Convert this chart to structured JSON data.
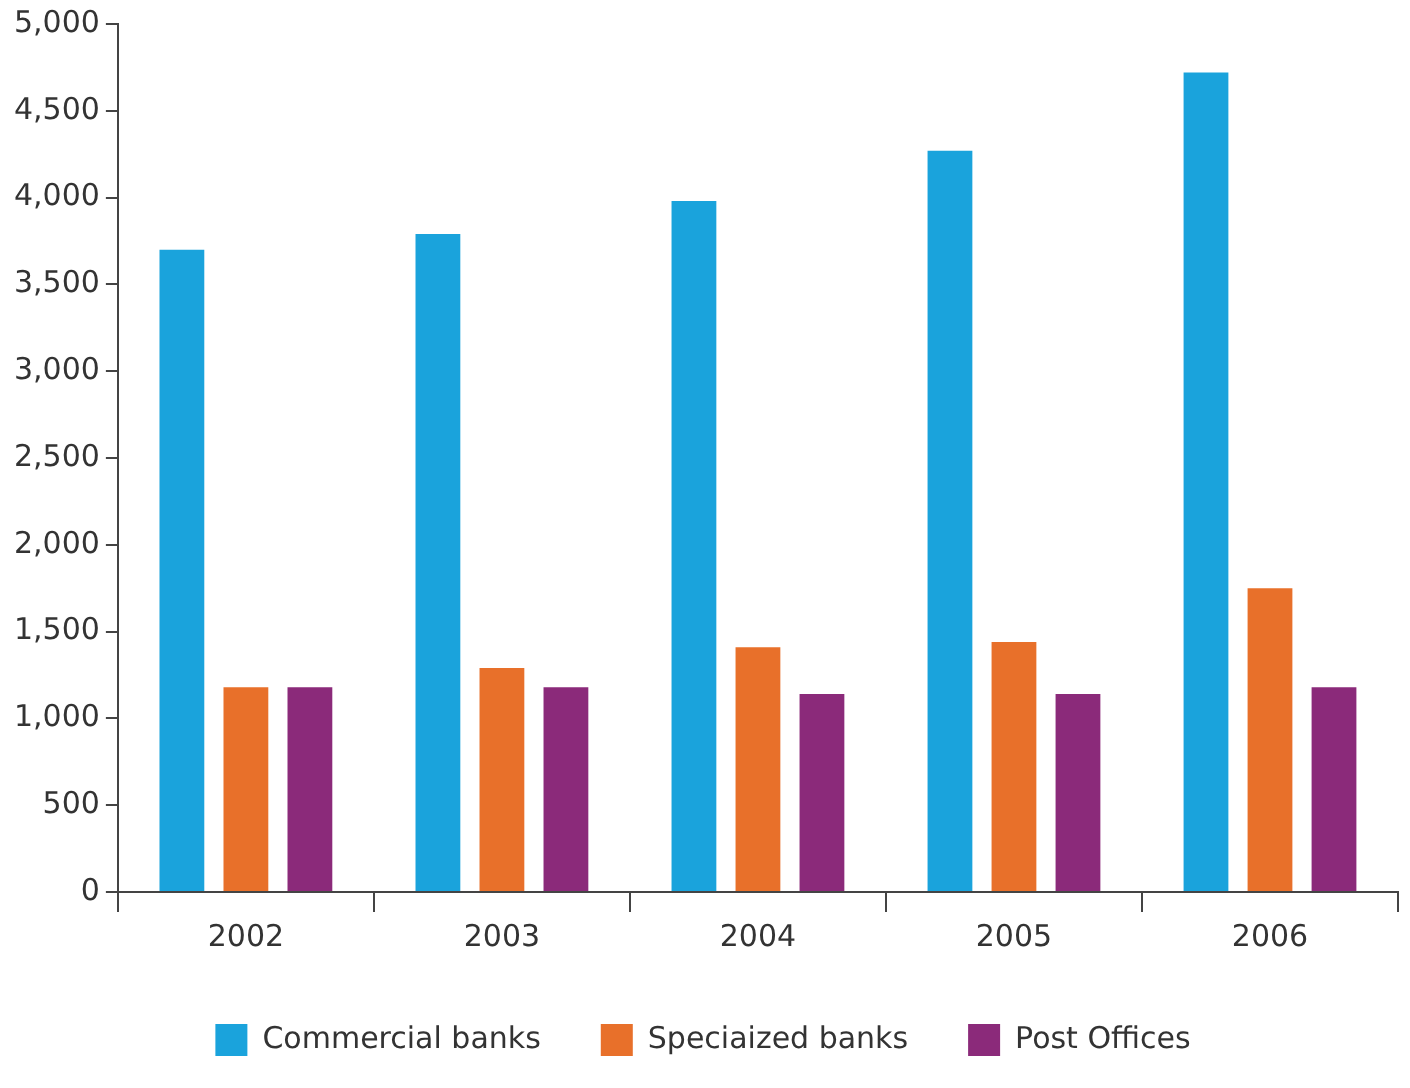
{
  "chart_data": {
    "type": "bar",
    "categories": [
      "2002",
      "2003",
      "2004",
      "2005",
      "2006"
    ],
    "series": [
      {
        "name": "Commercial banks",
        "color": "#1aa3dc",
        "values": [
          3700,
          3790,
          3980,
          4270,
          4720
        ]
      },
      {
        "name": "Speciaized banks",
        "color": "#e8702a",
        "values": [
          1180,
          1290,
          1410,
          1440,
          1750
        ]
      },
      {
        "name": "Post Offices",
        "color": "#8b2a7a",
        "values": [
          1180,
          1180,
          1140,
          1140,
          1180
        ]
      }
    ],
    "ylim": [
      0,
      5000
    ],
    "yticks": [
      {
        "value": 0,
        "label": "0"
      },
      {
        "value": 500,
        "label": "500"
      },
      {
        "value": 1000,
        "label": "1,000"
      },
      {
        "value": 1500,
        "label": "1,500"
      },
      {
        "value": 2000,
        "label": "2,000"
      },
      {
        "value": 2500,
        "label": "2,500"
      },
      {
        "value": 3000,
        "label": "3,000"
      },
      {
        "value": 3500,
        "label": "3,500"
      },
      {
        "value": 4000,
        "label": "4,000"
      },
      {
        "value": 4500,
        "label": "4,500"
      },
      {
        "value": 5000,
        "label": "5,000"
      }
    ],
    "grid": false,
    "legend": "bottom"
  }
}
